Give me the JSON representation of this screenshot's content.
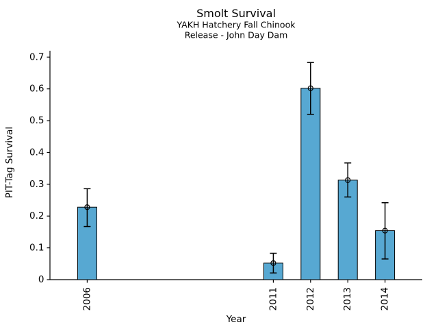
{
  "chart_data": {
    "type": "bar",
    "title": "Smolt Survival",
    "subtitle_lines": [
      "YAKH Hatchery Fall Chinook",
      "Release - John Day Dam"
    ],
    "xlabel": "Year",
    "ylabel": "PIT-Tag Survival",
    "categories": [
      2006,
      2011,
      2012,
      2013,
      2014
    ],
    "x_tick_labels": [
      "2006",
      "2011",
      "2012",
      "2013",
      "2014"
    ],
    "values": [
      0.228,
      0.052,
      0.602,
      0.313,
      0.154
    ],
    "error_low": [
      0.167,
      0.021,
      0.52,
      0.26,
      0.065
    ],
    "error_high": [
      0.286,
      0.083,
      0.683,
      0.367,
      0.242
    ],
    "xlim": [
      2005,
      2015
    ],
    "ylim": [
      0,
      0.72
    ],
    "yticks": [
      0,
      0.1,
      0.2,
      0.3,
      0.4,
      0.5,
      0.6,
      0.7
    ],
    "ytick_labels": [
      "0",
      "0.1",
      "0.2",
      "0.3",
      "0.4",
      "0.5",
      "0.6",
      "0.7"
    ],
    "x_tick_rotation": 90,
    "grid": false,
    "legend": "none",
    "marker": "open-circle-icon",
    "colors": {
      "bar_fill": "#57A8D2",
      "bar_edge": "#000000",
      "errorbar": "#000000",
      "axis": "#000000",
      "text": "#000000",
      "background": "#ffffff"
    }
  }
}
